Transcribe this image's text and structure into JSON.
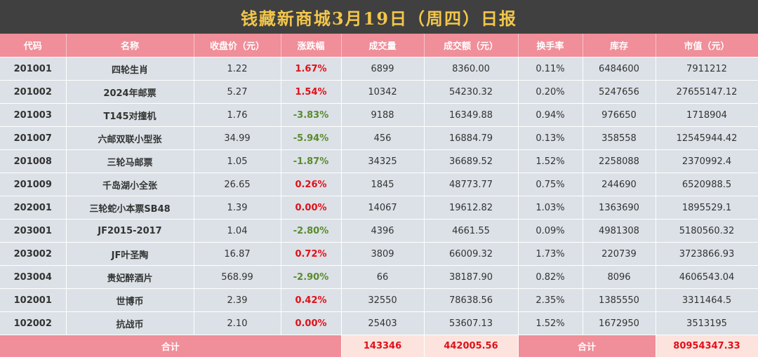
{
  "title": "钱藏新商城3月19日（周四）日报",
  "headers": [
    "代码",
    "名称",
    "收盘价（元）",
    "涨跌幅",
    "成交量",
    "成交额（元）",
    "换手率",
    "库存",
    "市值（元）"
  ],
  "rows": [
    {
      "code": "201001",
      "name": "四轮生肖",
      "close": "1.22",
      "change": "1.67%",
      "dir": "up",
      "volume": "6899",
      "amount": "8360.00",
      "turnover": "0.11%",
      "stock": "6484600",
      "mcap": "7911212"
    },
    {
      "code": "201002",
      "name": "2024年邮票",
      "close": "5.27",
      "change": "1.54%",
      "dir": "up",
      "volume": "10342",
      "amount": "54230.32",
      "turnover": "0.20%",
      "stock": "5247656",
      "mcap": "27655147.12"
    },
    {
      "code": "201003",
      "name": "T145对撞机",
      "close": "1.76",
      "change": "-3.83%",
      "dir": "down",
      "volume": "9188",
      "amount": "16349.88",
      "turnover": "0.94%",
      "stock": "976650",
      "mcap": "1718904"
    },
    {
      "code": "201007",
      "name": "六邮双联小型张",
      "close": "34.99",
      "change": "-5.94%",
      "dir": "down",
      "volume": "456",
      "amount": "16884.79",
      "turnover": "0.13%",
      "stock": "358558",
      "mcap": "12545944.42"
    },
    {
      "code": "201008",
      "name": "三轮马邮票",
      "close": "1.05",
      "change": "-1.87%",
      "dir": "down",
      "volume": "34325",
      "amount": "36689.52",
      "turnover": "1.52%",
      "stock": "2258088",
      "mcap": "2370992.4"
    },
    {
      "code": "201009",
      "name": "千岛湖小全张",
      "close": "26.65",
      "change": "0.26%",
      "dir": "up",
      "volume": "1845",
      "amount": "48773.77",
      "turnover": "0.75%",
      "stock": "244690",
      "mcap": "6520988.5"
    },
    {
      "code": "202001",
      "name": "三轮蛇小本票SB48",
      "close": "1.39",
      "change": "0.00%",
      "dir": "flat",
      "volume": "14067",
      "amount": "19612.82",
      "turnover": "1.03%",
      "stock": "1363690",
      "mcap": "1895529.1"
    },
    {
      "code": "203001",
      "name": "JF2015-2017",
      "close": "1.04",
      "change": "-2.80%",
      "dir": "down",
      "volume": "4396",
      "amount": "4661.55",
      "turnover": "0.09%",
      "stock": "4981308",
      "mcap": "5180560.32"
    },
    {
      "code": "203002",
      "name": "JF叶圣陶",
      "close": "16.87",
      "change": "0.72%",
      "dir": "up",
      "volume": "3809",
      "amount": "66009.32",
      "turnover": "1.73%",
      "stock": "220739",
      "mcap": "3723866.93"
    },
    {
      "code": "203004",
      "name": "贵妃醉酒片",
      "close": "568.99",
      "change": "-2.90%",
      "dir": "down",
      "volume": "66",
      "amount": "38187.90",
      "turnover": "0.82%",
      "stock": "8096",
      "mcap": "4606543.04"
    },
    {
      "code": "102001",
      "name": "世博币",
      "close": "2.39",
      "change": "0.42%",
      "dir": "up",
      "volume": "32550",
      "amount": "78638.56",
      "turnover": "2.35%",
      "stock": "1385550",
      "mcap": "3311464.5"
    },
    {
      "code": "102002",
      "name": "抗战币",
      "close": "2.10",
      "change": "0.00%",
      "dir": "flat",
      "volume": "25403",
      "amount": "53607.13",
      "turnover": "1.52%",
      "stock": "1672950",
      "mcap": "3513195"
    }
  ],
  "footer": {
    "label1": "合计",
    "total_volume": "143346",
    "total_amount": "442005.56",
    "label2": "合计",
    "total_mcap": "80954347.33"
  },
  "colors": {
    "header_bg": "#f08e99",
    "title_bg": "#404040",
    "title_text": "#f2c64a",
    "up": "#e0101a",
    "down": "#5a8a2e"
  }
}
